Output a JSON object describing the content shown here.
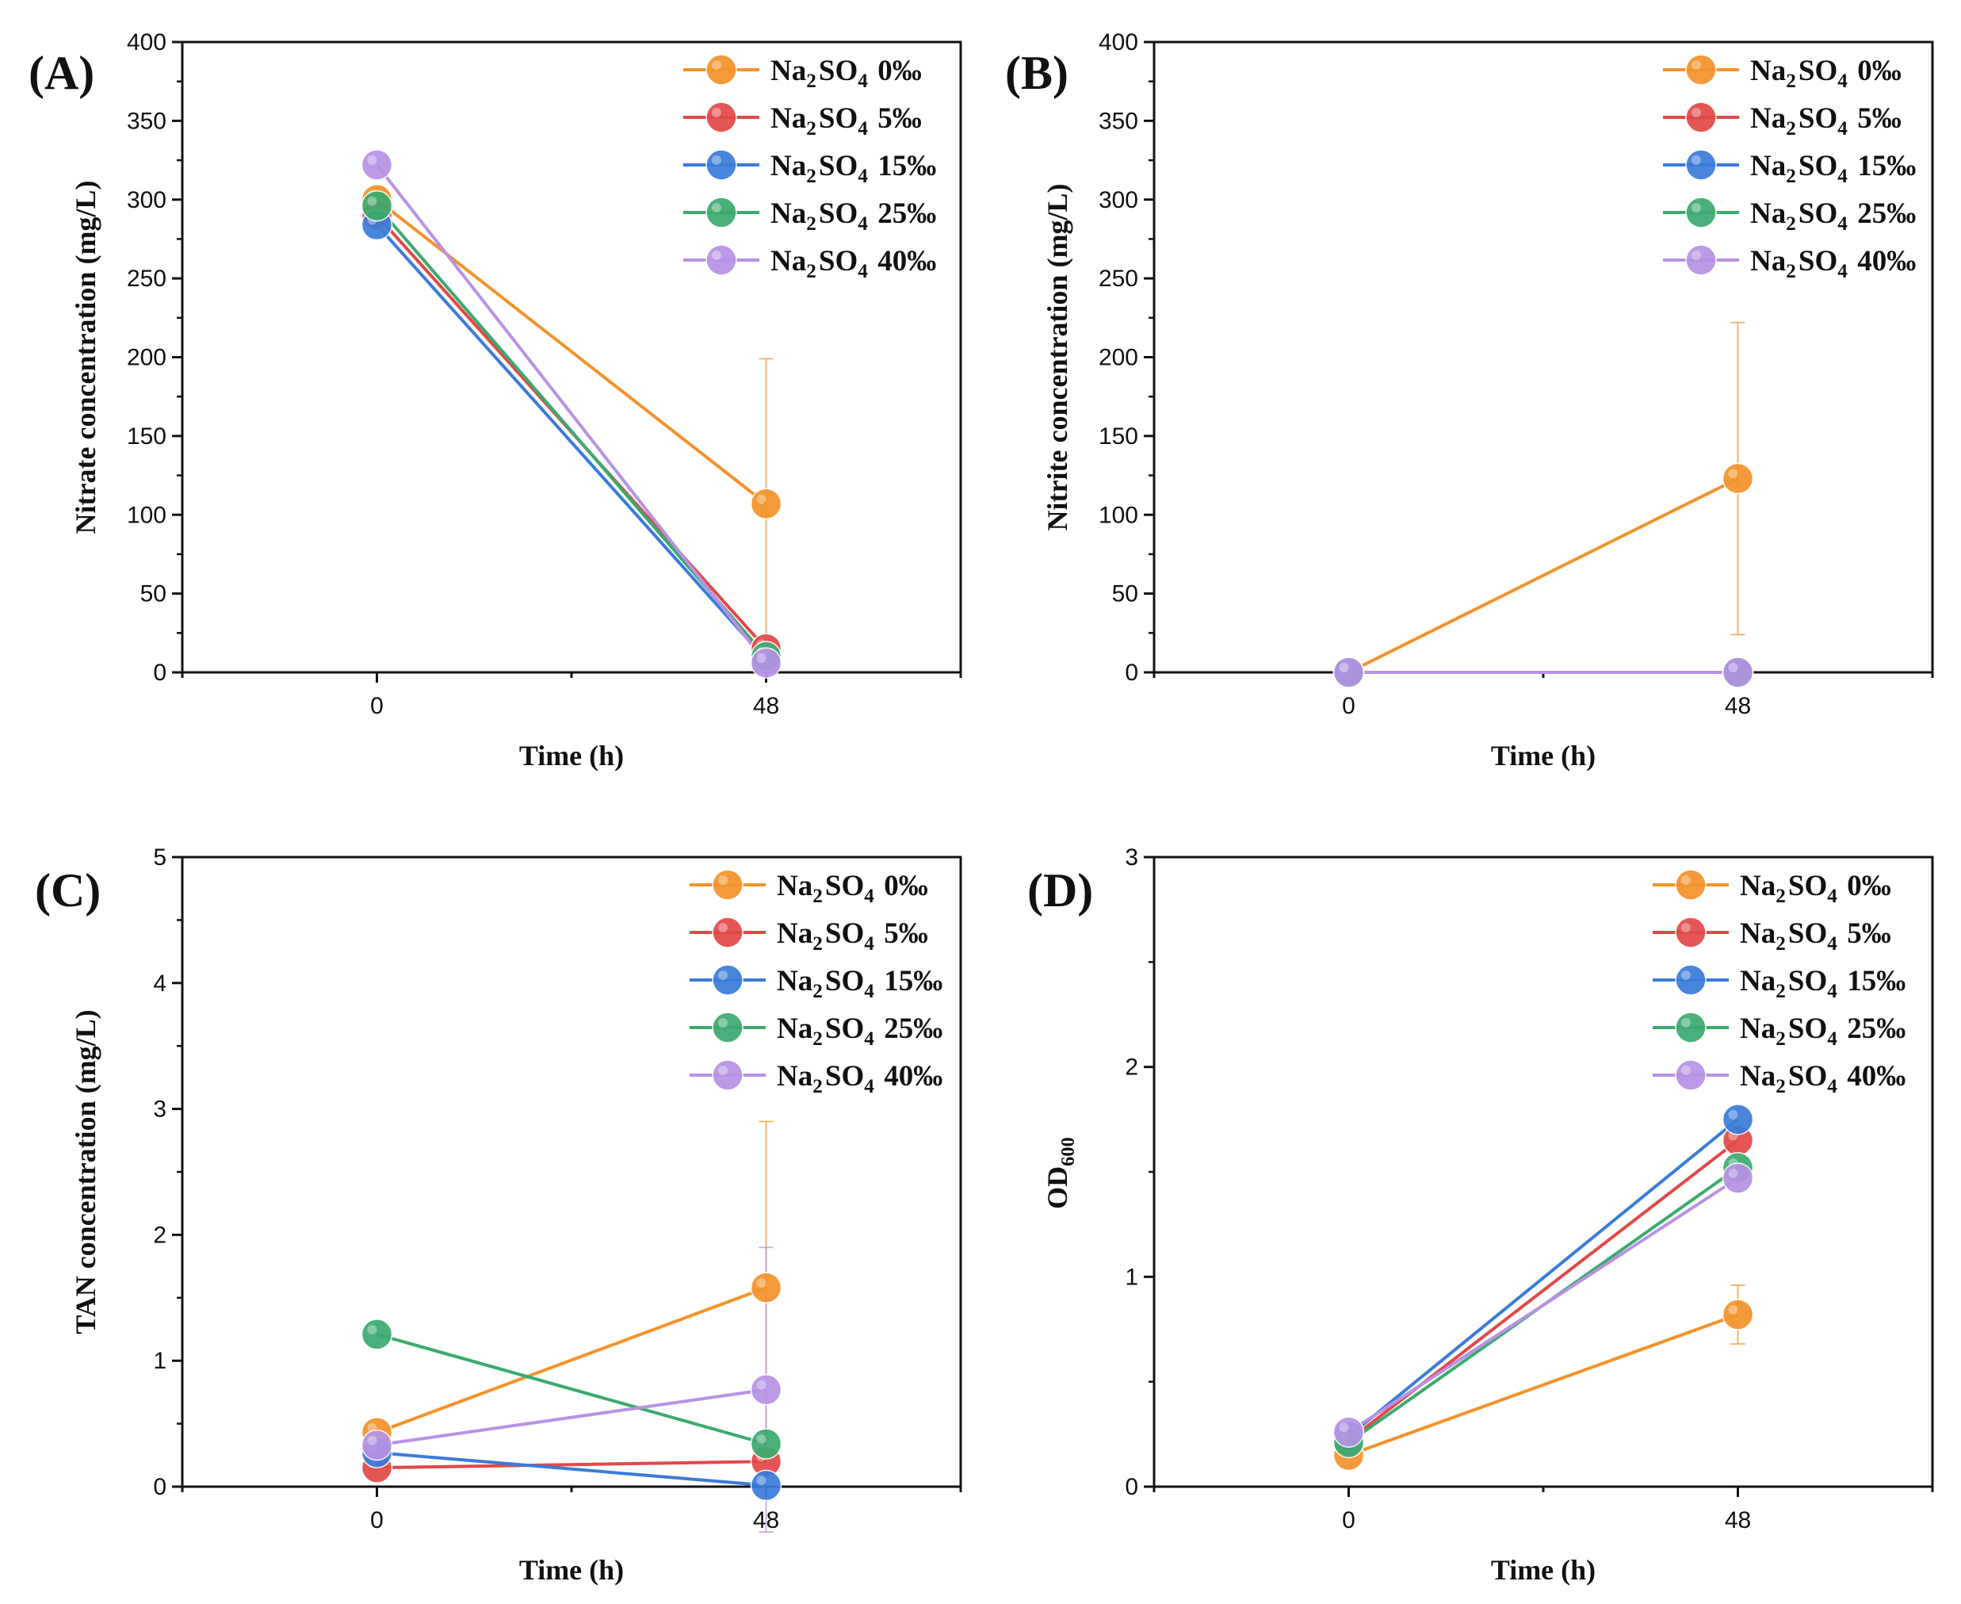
{
  "figure": {
    "legend_labels": [
      "Na2SO4 0‰",
      "Na2SO4 5‰",
      "Na2SO4 15‰",
      "Na2SO4 25‰",
      "Na2SO4 40‰"
    ]
  },
  "chart_data": [
    {
      "panel": "(A)",
      "type": "line",
      "xlabel": "Time (h)",
      "ylabel": "Nitrate concentration (mg/L)",
      "categories": [
        "0",
        "48"
      ],
      "ylim": [
        0,
        400
      ],
      "yticks": [
        0,
        50,
        100,
        150,
        200,
        250,
        300,
        350,
        400
      ],
      "series": [
        {
          "name": "Na2SO4 0‰",
          "color": "#F5922A",
          "values": [
            300,
            107
          ],
          "errors": [
            0,
            92
          ]
        },
        {
          "name": "Na2SO4 5‰",
          "color": "#E24848",
          "values": [
            290,
            15
          ],
          "errors": [
            0,
            0
          ]
        },
        {
          "name": "Na2SO4 15‰",
          "color": "#3A7BDA",
          "values": [
            284,
            8
          ],
          "errors": [
            0,
            0
          ]
        },
        {
          "name": "Na2SO4 25‰",
          "color": "#3BAA6E",
          "values": [
            296,
            10
          ],
          "errors": [
            0,
            0
          ]
        },
        {
          "name": "Na2SO4 40‰",
          "color": "#B792E4",
          "values": [
            322,
            6
          ],
          "errors": [
            0,
            0
          ]
        }
      ]
    },
    {
      "panel": "(B)",
      "type": "line",
      "xlabel": "Time (h)",
      "ylabel": "Nitrite concentration (mg/L)",
      "categories": [
        "0",
        "48"
      ],
      "ylim": [
        0,
        400
      ],
      "yticks": [
        0,
        50,
        100,
        150,
        200,
        250,
        300,
        350,
        400
      ],
      "series": [
        {
          "name": "Na2SO4 0‰",
          "color": "#F5922A",
          "values": [
            0,
            123
          ],
          "errors": [
            0,
            99
          ]
        },
        {
          "name": "Na2SO4 5‰",
          "color": "#E24848",
          "values": [
            0,
            0
          ],
          "errors": [
            0,
            0
          ]
        },
        {
          "name": "Na2SO4 15‰",
          "color": "#3A7BDA",
          "values": [
            0,
            0
          ],
          "errors": [
            0,
            0
          ]
        },
        {
          "name": "Na2SO4 25‰",
          "color": "#3BAA6E",
          "values": [
            0,
            0
          ],
          "errors": [
            0,
            0
          ]
        },
        {
          "name": "Na2SO4 40‰",
          "color": "#B792E4",
          "values": [
            0,
            0
          ],
          "errors": [
            0,
            0
          ]
        }
      ]
    },
    {
      "panel": "(C)",
      "type": "line",
      "xlabel": "Time (h)",
      "ylabel": "TAN concentration (mg/L)",
      "categories": [
        "0",
        "48"
      ],
      "ylim": [
        0,
        5
      ],
      "yticks": [
        0,
        1,
        2,
        3,
        4,
        5
      ],
      "series": [
        {
          "name": "Na2SO4 0‰",
          "color": "#F5922A",
          "values": [
            0.43,
            1.58
          ],
          "errors": [
            0,
            1.32
          ]
        },
        {
          "name": "Na2SO4 5‰",
          "color": "#E24848",
          "values": [
            0.15,
            0.2
          ],
          "errors": [
            0,
            0
          ]
        },
        {
          "name": "Na2SO4 15‰",
          "color": "#3A7BDA",
          "values": [
            0.27,
            0.01
          ],
          "errors": [
            0,
            0
          ]
        },
        {
          "name": "Na2SO4 25‰",
          "color": "#3BAA6E",
          "values": [
            1.21,
            0.34
          ],
          "errors": [
            0,
            0
          ]
        },
        {
          "name": "Na2SO4 40‰",
          "color": "#B792E4",
          "values": [
            0.33,
            0.77
          ],
          "errors": [
            0,
            1.13
          ]
        }
      ]
    },
    {
      "panel": "(D)",
      "type": "line",
      "xlabel": "Time (h)",
      "ylabel": "OD600",
      "categories": [
        "0",
        "48"
      ],
      "ylim": [
        0,
        3
      ],
      "yticks": [
        0,
        1,
        2,
        3
      ],
      "series": [
        {
          "name": "Na2SO4 0‰",
          "color": "#F5922A",
          "values": [
            0.15,
            0.82
          ],
          "errors": [
            0,
            0.14
          ]
        },
        {
          "name": "Na2SO4 5‰",
          "color": "#E24848",
          "values": [
            0.22,
            1.65
          ],
          "errors": [
            0,
            0
          ]
        },
        {
          "name": "Na2SO4 15‰",
          "color": "#3A7BDA",
          "values": [
            0.24,
            1.75
          ],
          "errors": [
            0,
            0
          ]
        },
        {
          "name": "Na2SO4 25‰",
          "color": "#3BAA6E",
          "values": [
            0.21,
            1.52
          ],
          "errors": [
            0,
            0
          ]
        },
        {
          "name": "Na2SO4 40‰",
          "color": "#B792E4",
          "values": [
            0.26,
            1.47
          ],
          "errors": [
            0,
            0
          ]
        }
      ]
    }
  ]
}
